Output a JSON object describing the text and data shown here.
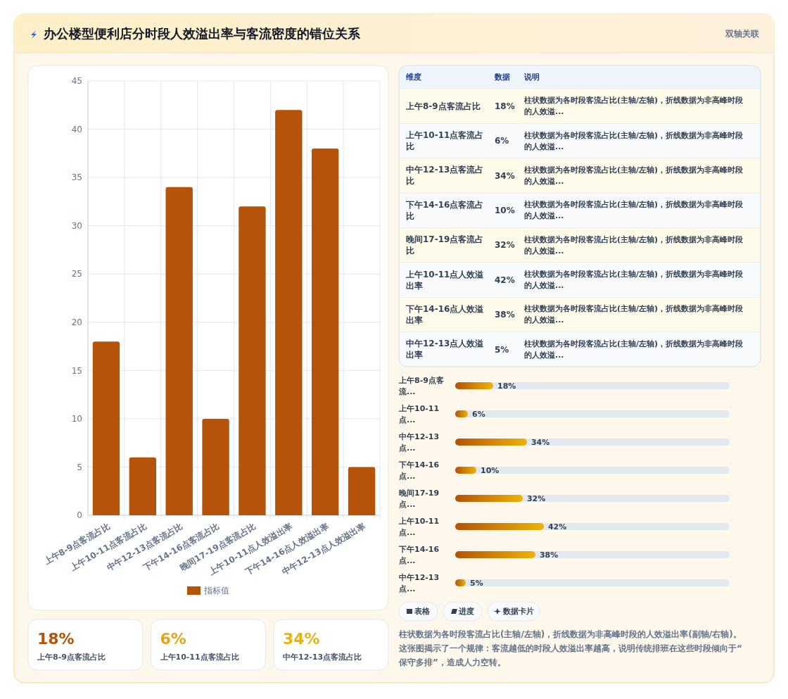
{
  "chart_data": [
    {
      "type": "other",
      "title": "办公楼型便利店分时段人效溢出率与客流密度的错位关系",
      "subtitle": "双轴关联"
    },
    {
      "type": "bar",
      "categories": [
        "上午8-9点客流占比",
        "上午10-11点客流占比",
        "中午12-13点客流占比",
        "下午14-16点客流占比",
        "晚间17-19点客流占比",
        "上午10-11点人效溢出率",
        "下午14-16点人效溢出率",
        "中午12-13点人效溢出率"
      ],
      "series": [
        {
          "name": "指标值",
          "color": "#b45309",
          "values": [
            18,
            6,
            34,
            10,
            32,
            42,
            38,
            5
          ]
        }
      ],
      "ylim": [
        0,
        45
      ],
      "yticks": [
        0,
        5,
        10,
        15,
        20,
        25,
        30,
        35,
        40,
        45
      ],
      "grid": true,
      "legend": "bottom"
    },
    {
      "type": "other",
      "categories": [
        "上午8-9点客流占比",
        "上午10-11点客流占比",
        "中午12-13点客流占比",
        "下午14-16点客流占比",
        "晚间17-19点客流占比",
        "上午10-11点人效溢出率",
        "下午14-16点人效溢出率",
        "中午12-13点人效溢出率"
      ],
      "value_labels": [
        "18%",
        "6%",
        "34%",
        "10%",
        "32%",
        "42%",
        "38%",
        "5%"
      ],
      "annotations": [
        "维度",
        "数据",
        "说明",
        "柱状数据为各时段客流占比(主轴/左轴)，折线数据为非高峰时段的人效溢...",
        "柱状数据为各时段客流占比(主轴/左轴)，折线数据为非高峰时段的人效溢...",
        "柱状数据为各时段客流占比(主轴/左轴)，折线数据为非高峰时段的人效溢...",
        "柱状数据为各时段客流占比(主轴/左轴)，折线数据为非高峰时段的人效溢...",
        "柱状数据为各时段客流占比(主轴/左轴)，折线数据为非高峰时段的人效溢...",
        "柱状数据为各时段客流占比(主轴/左轴)，折线数据为非高峰时段的人效溢...",
        "柱状数据为各时段客流占比(主轴/左轴)，折线数据为非高峰时段的人效溢...",
        "柱状数据为各时段客流占比(主轴/左轴)，折线数据为非高峰时段的人效溢..."
      ]
    },
    {
      "type": "bar",
      "orientation": "horizontal",
      "categories": [
        "上午8-9点客流...",
        "上午10-11点...",
        "中午12-13点...",
        "下午14-16点...",
        "晚间17-19点...",
        "上午10-11点...",
        "下午14-16点...",
        "中午12-13点..."
      ],
      "values": [
        18,
        6,
        34,
        10,
        32,
        42,
        38,
        5
      ],
      "value_labels": [
        "18%",
        "6%",
        "34%",
        "10%",
        "32%",
        "42%",
        "38%",
        "5%"
      ],
      "colors": [
        "#b45309",
        "#b45309",
        "#b45309",
        "#b45309",
        "#b45309",
        "#b45309",
        "#b45309",
        "#b45309"
      ],
      "annotations": [
        "表格",
        "进度",
        "数据卡片",
        "柱状数据为各时段客流占比(主轴/左轴)，折线数据为非高峰时段的人效溢出率(副轴/右轴)。这张图揭示了一个规律：客流越低的时段人效溢出率越高，说明传统排班在这些时段倾向于“保守多排”，造成人力空转。"
      ]
    },
    {
      "type": "other",
      "categories": [
        "上午8-9点客流占比",
        "上午10-11点客流占比",
        "中午12-13点客流占比"
      ],
      "value_labels": [
        "18%",
        "6%",
        "34%"
      ]
    }
  ]
}
